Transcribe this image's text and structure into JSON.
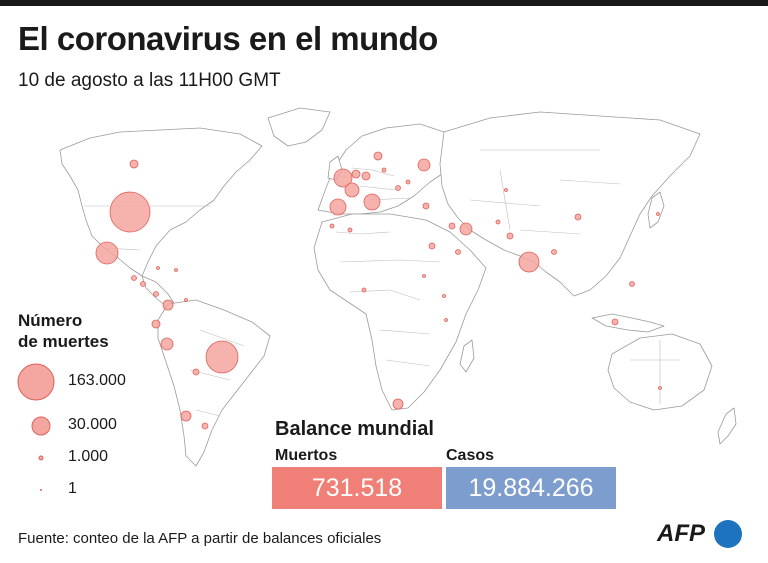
{
  "header": {
    "title": "El coronavirus en el mundo",
    "subtitle": "10 de agosto a las 11H00 GMT"
  },
  "legend": {
    "title_line1": "Número",
    "title_line2": "de muertes",
    "items": [
      {
        "label": "163.000"
      },
      {
        "label": "30.000"
      },
      {
        "label": "1.000"
      },
      {
        "label": "1"
      }
    ]
  },
  "balance": {
    "title": "Balance mundial",
    "deaths_label": "Muertos",
    "deaths_value": "731.518",
    "cases_label": "Casos",
    "cases_value": "19.884.266"
  },
  "footer": {
    "source": "Fuente: conteo de la AFP a partir de balances oficiales",
    "brand": "AFP"
  },
  "colors": {
    "bubble_fill": "#f4a6a0",
    "bubble_stroke": "#e0605a",
    "land": "#ffffff",
    "border": "#9a9a9a",
    "deaths_box": "#f08077",
    "cases_box": "#7e9dcf",
    "afp_blue": "#1e73be"
  }
}
